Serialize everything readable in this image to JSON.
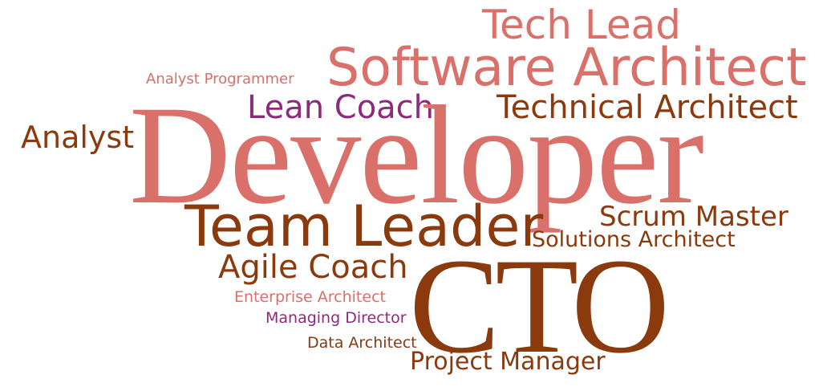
{
  "colors": {
    "salmon": "#d9706a",
    "rust": "#8b3a0e",
    "purple": "#8e2a7c",
    "background": "#ffffff"
  },
  "words": [
    {
      "text": "Tech Lead",
      "color": "salmon"
    },
    {
      "text": "Software Architect",
      "color": "salmon"
    },
    {
      "text": "Analyst Programmer",
      "color": "salmon"
    },
    {
      "text": "Lean Coach",
      "color": "purple"
    },
    {
      "text": "Technical Architect",
      "color": "rust"
    },
    {
      "text": "Analyst",
      "color": "rust"
    },
    {
      "text": "Developer",
      "color": "salmon"
    },
    {
      "text": "Team Leader",
      "color": "rust"
    },
    {
      "text": "Scrum Master",
      "color": "rust"
    },
    {
      "text": "Solutions Architect",
      "color": "rust"
    },
    {
      "text": "Agile Coach",
      "color": "rust"
    },
    {
      "text": "CTO",
      "color": "rust"
    },
    {
      "text": "Enterprise Architect",
      "color": "salmon"
    },
    {
      "text": "Managing Director",
      "color": "purple"
    },
    {
      "text": "Data Architect",
      "color": "rust"
    },
    {
      "text": "Project Manager",
      "color": "rust"
    }
  ]
}
